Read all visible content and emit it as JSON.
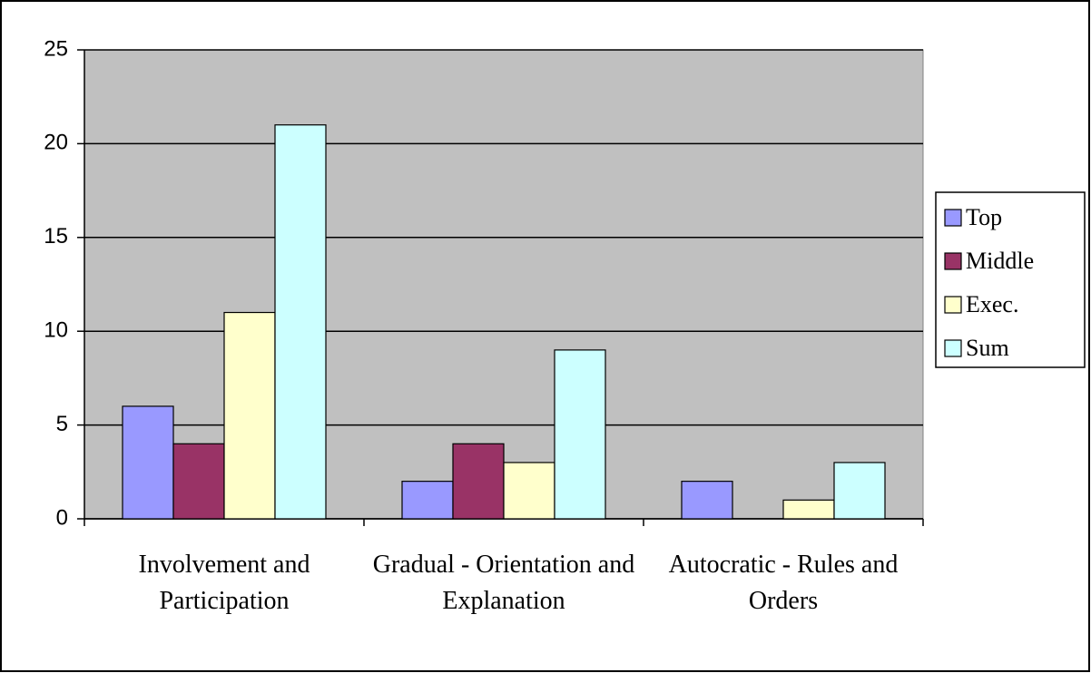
{
  "chart_data": {
    "type": "bar",
    "categories": [
      "Involvement and Participation",
      "Gradual - Orientation and Explanation",
      "Autocratic - Rules and Orders"
    ],
    "series": [
      {
        "name": "Top",
        "color": "#9999ff",
        "values": [
          6,
          2,
          2
        ]
      },
      {
        "name": "Middle",
        "color": "#993366",
        "values": [
          4,
          4,
          0
        ]
      },
      {
        "name": "Exec.",
        "color": "#ffffcc",
        "values": [
          11,
          3,
          1
        ]
      },
      {
        "name": "Sum",
        "color": "#ccffff",
        "values": [
          21,
          9,
          3
        ]
      }
    ],
    "ylim": [
      0,
      25
    ],
    "yticks": [
      0,
      5,
      10,
      15,
      20,
      25
    ],
    "grid": true,
    "legend": "right"
  }
}
